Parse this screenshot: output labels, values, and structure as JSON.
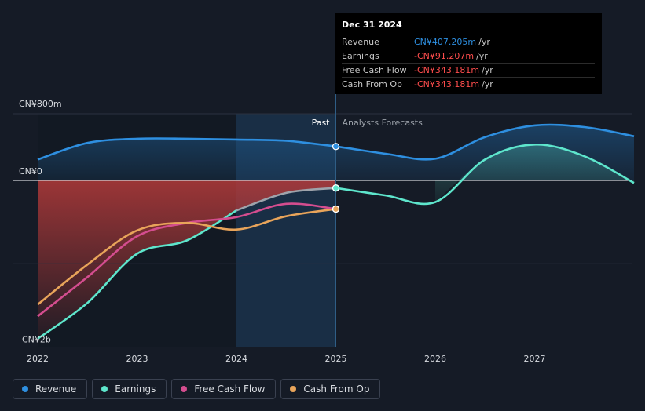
{
  "chart_data": {
    "type": "line",
    "y_tick_labels": [
      "CN¥800m",
      "CN¥0",
      "-CN¥2b"
    ],
    "x_tick_labels": [
      "2022",
      "2023",
      "2024",
      "2025",
      "2026",
      "2027"
    ],
    "ylim_millions": [
      -2000,
      800
    ],
    "past_label": "Past",
    "forecast_label": "Analysts Forecasts",
    "series": [
      {
        "name": "Revenue",
        "color": "#2e8fe0",
        "points": [
          [
            2022.0,
            250
          ],
          [
            2022.5,
            450
          ],
          [
            2023.0,
            500
          ],
          [
            2023.5,
            500
          ],
          [
            2024.0,
            490
          ],
          [
            2024.5,
            475
          ],
          [
            2025.0,
            407.2
          ],
          [
            2025.5,
            320
          ],
          [
            2026.0,
            260
          ],
          [
            2026.5,
            520
          ],
          [
            2027.0,
            660
          ],
          [
            2027.5,
            640
          ],
          [
            2028.0,
            530
          ]
        ]
      },
      {
        "name": "Earnings",
        "color": "#5ee6cc",
        "points": [
          [
            2022.0,
            -1900
          ],
          [
            2022.5,
            -1470
          ],
          [
            2023.0,
            -880
          ],
          [
            2023.5,
            -720
          ],
          [
            2024.0,
            -360
          ],
          [
            2024.5,
            -150
          ],
          [
            2025.0,
            -91.2
          ],
          [
            2025.5,
            -180
          ],
          [
            2026.0,
            -260
          ],
          [
            2026.5,
            250
          ],
          [
            2027.0,
            430
          ],
          [
            2027.5,
            290
          ],
          [
            2028.0,
            -30
          ]
        ]
      },
      {
        "name": "Free Cash Flow",
        "color": "#d44d8f",
        "points": [
          [
            2022.0,
            -1630
          ],
          [
            2022.5,
            -1160
          ],
          [
            2023.0,
            -670
          ],
          [
            2023.5,
            -510
          ],
          [
            2024.0,
            -440
          ],
          [
            2024.5,
            -280
          ],
          [
            2025.0,
            -343.2
          ]
        ]
      },
      {
        "name": "Cash From Op",
        "color": "#e8a45a",
        "points": [
          [
            2022.0,
            -1490
          ],
          [
            2022.5,
            -1010
          ],
          [
            2023.0,
            -600
          ],
          [
            2023.5,
            -510
          ],
          [
            2024.0,
            -590
          ],
          [
            2024.5,
            -430
          ],
          [
            2025.0,
            -343.2
          ]
        ]
      }
    ],
    "highlight_x": 2025.0
  },
  "tooltip": {
    "date": "Dec 31 2024",
    "rows": [
      {
        "label": "Revenue",
        "value": "CN¥407.205m",
        "unit": "/yr",
        "color": "#2e8fe0"
      },
      {
        "label": "Earnings",
        "value": "-CN¥91.207m",
        "unit": "/yr",
        "color": "#ff4d4d"
      },
      {
        "label": "Free Cash Flow",
        "value": "-CN¥343.181m",
        "unit": "/yr",
        "color": "#ff4d4d"
      },
      {
        "label": "Cash From Op",
        "value": "-CN¥343.181m",
        "unit": "/yr",
        "color": "#ff4d4d"
      }
    ]
  },
  "legend": [
    {
      "label": "Revenue",
      "color": "#2e8fe0"
    },
    {
      "label": "Earnings",
      "color": "#5ee6cc"
    },
    {
      "label": "Free Cash Flow",
      "color": "#d44d8f"
    },
    {
      "label": "Cash From Op",
      "color": "#e8a45a"
    }
  ]
}
